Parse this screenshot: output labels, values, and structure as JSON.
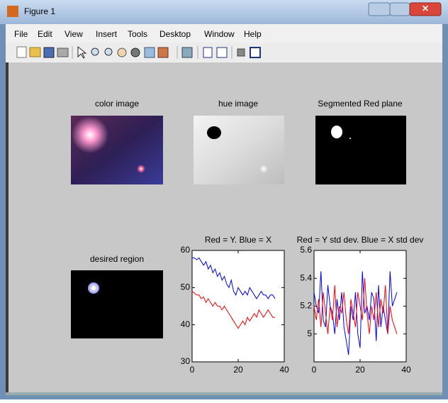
{
  "window": {
    "title": "Figure 1",
    "menu": [
      "File",
      "Edit",
      "View",
      "Insert",
      "Tools",
      "Desktop",
      "Window",
      "Help"
    ]
  },
  "figure": {
    "image_panels": [
      {
        "title": "color image"
      },
      {
        "title": "hue image"
      },
      {
        "title": "Segmented Red plane"
      },
      {
        "title": "desired region"
      }
    ]
  },
  "chart_data": [
    {
      "type": "line",
      "title": "Red = Y.  Blue = X",
      "x": [
        0,
        1,
        2,
        3,
        4,
        5,
        6,
        7,
        8,
        9,
        10,
        11,
        12,
        13,
        14,
        15,
        16,
        17,
        18,
        19,
        20,
        21,
        22,
        23,
        24,
        25,
        26,
        27,
        28,
        29,
        30,
        31,
        32,
        33,
        34,
        35,
        36
      ],
      "series": [
        {
          "color": "#0000ff",
          "values": [
            58,
            58,
            57.5,
            58,
            57,
            56,
            57,
            55,
            56,
            54,
            55,
            53,
            54,
            52,
            53,
            51,
            50,
            52,
            49,
            48,
            50,
            49,
            48,
            49,
            48,
            50,
            49,
            48,
            47,
            48,
            49,
            48,
            48,
            47,
            48,
            48,
            47
          ]
        },
        {
          "color": "#ff0000",
          "values": [
            49,
            48.5,
            48,
            48,
            47,
            47.5,
            46,
            47,
            46,
            45,
            46,
            45,
            45,
            44,
            45,
            44,
            43,
            42,
            41,
            40,
            39,
            40,
            41,
            40,
            42,
            41,
            42,
            43,
            42,
            44,
            43,
            42,
            43,
            44,
            43,
            42,
            42
          ]
        }
      ],
      "xlim": [
        0,
        40
      ],
      "xticks": [
        0,
        20,
        40
      ],
      "ylim": [
        30,
        60
      ],
      "yticks": [
        30,
        40,
        50,
        60
      ]
    },
    {
      "type": "line",
      "title": "Red = Y std dev.  Blue = X  std dev",
      "x": [
        0,
        1,
        2,
        3,
        4,
        5,
        6,
        7,
        8,
        9,
        10,
        11,
        12,
        13,
        14,
        15,
        16,
        17,
        18,
        19,
        20,
        21,
        22,
        23,
        24,
        25,
        26,
        27,
        28,
        29,
        30,
        31,
        32,
        33,
        34,
        35,
        36
      ],
      "series": [
        {
          "color": "#0000ff",
          "values": [
            5.3,
            5.2,
            5.15,
            5.45,
            5.1,
            5.05,
            5.35,
            5.2,
            5.15,
            5.0,
            5.25,
            5.1,
            5.3,
            5.05,
            4.95,
            4.85,
            5.2,
            5.1,
            5.3,
            5.0,
            4.9,
            5.45,
            5.15,
            5.2,
            5.1,
            5.3,
            5.25,
            4.95,
            5.35,
            5.05,
            5.2,
            5.1,
            5.0,
            5.45,
            5.2,
            5.25,
            5.3
          ]
        },
        {
          "color": "#ff0000",
          "values": [
            5.2,
            5.1,
            5.25,
            5.05,
            5.3,
            5.15,
            5.0,
            5.2,
            5.1,
            5.35,
            5.05,
            5.2,
            5.15,
            5.3,
            5.1,
            5.0,
            5.25,
            5.15,
            5.05,
            5.3,
            5.2,
            5.1,
            5.4,
            5.15,
            5.0,
            5.2,
            5.1,
            5.3,
            5.05,
            5.25,
            5.15,
            5.35,
            5.0,
            5.2,
            5.1,
            5.05,
            5.0
          ]
        }
      ],
      "xlim": [
        0,
        40
      ],
      "xticks": [
        0,
        20,
        40
      ],
      "ylim": [
        4.8,
        5.6
      ],
      "yticks": [
        5,
        5.2,
        5.4,
        5.6
      ]
    }
  ]
}
